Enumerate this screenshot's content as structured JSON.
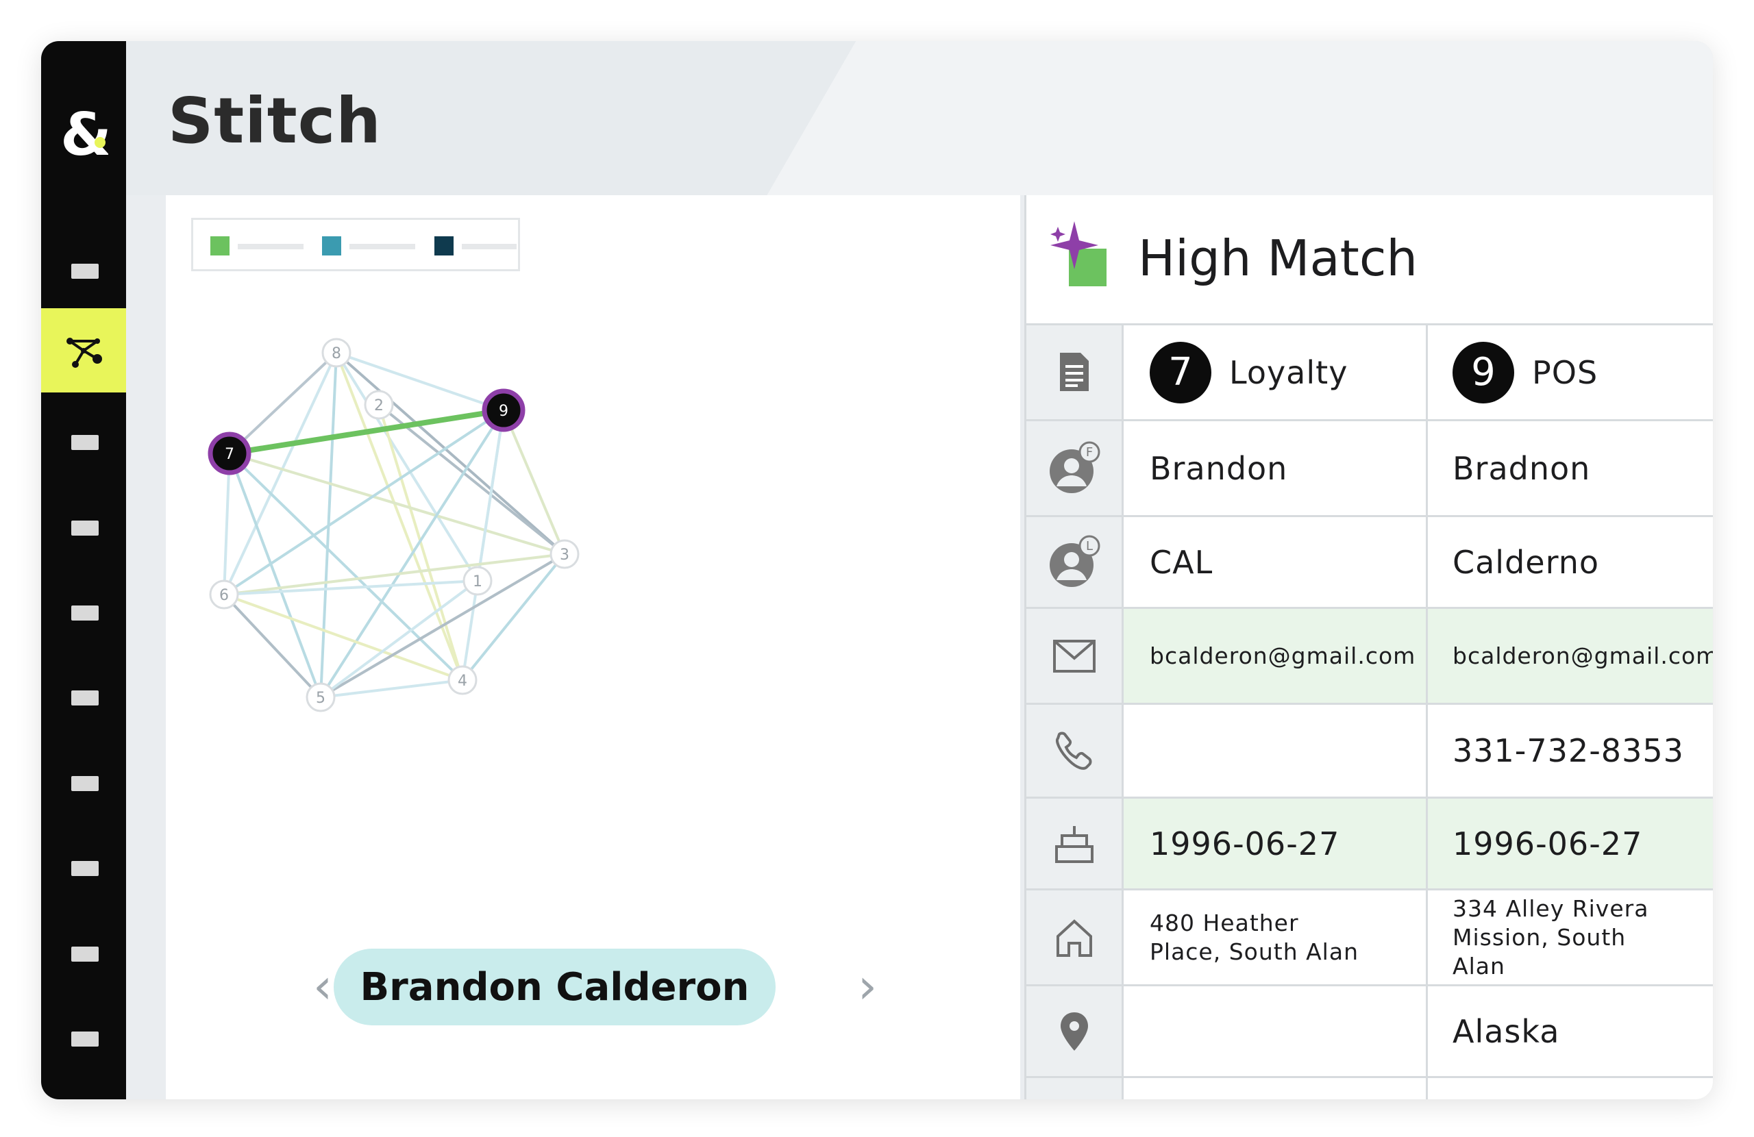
{
  "app": {
    "title": "Stitch",
    "logo_icon": "ampersand-logo-icon"
  },
  "sidebar": {
    "active_icon": "network-graph-icon",
    "items": [
      "item-1",
      "item-2",
      "item-3",
      "item-4",
      "item-5",
      "item-6",
      "item-7",
      "item-8",
      "item-9",
      "item-10"
    ]
  },
  "colors": {
    "accent_yellow": "#e8f55a",
    "legend_green": "#6cc25f",
    "legend_teal": "#3b9bb0",
    "legend_navy": "#0f3a4e",
    "match_edge": "#6cc25f",
    "selected_node_ring": "#8e3fa8",
    "pill_bg": "#c9ecec",
    "row_highlight": "#e9f5e9"
  },
  "graph": {
    "nodes": [
      {
        "id": "1"
      },
      {
        "id": "2"
      },
      {
        "id": "3"
      },
      {
        "id": "4"
      },
      {
        "id": "5"
      },
      {
        "id": "6"
      },
      {
        "id": "7",
        "selected": true
      },
      {
        "id": "8"
      },
      {
        "id": "9",
        "selected": true
      }
    ],
    "highlighted_edge": [
      "7",
      "9"
    ]
  },
  "person": {
    "name": "Brandon Calderon",
    "prev_icon": "chevron-left-icon",
    "next_icon": "chevron-right-icon"
  },
  "match": {
    "title": "High Match",
    "icon": "sparkle-match-icon",
    "sources": [
      {
        "number": "7",
        "label": "Loyalty"
      },
      {
        "number": "9",
        "label": "POS"
      }
    ],
    "rows": [
      {
        "icon": "first-name-icon",
        "a": "Brandon",
        "b": "Bradnon",
        "highlight": false
      },
      {
        "icon": "last-name-icon",
        "a": "CAL",
        "b": "Calderno",
        "highlight": false
      },
      {
        "icon": "email-icon",
        "a": "bcalderon@gmail.com",
        "b": "bcalderon@gmail.com",
        "highlight": true
      },
      {
        "icon": "phone-icon",
        "a": "",
        "b": "331-732-8353",
        "highlight": false
      },
      {
        "icon": "birthday-cake-icon",
        "a": "1996-06-27",
        "b": "1996-06-27",
        "highlight": true
      },
      {
        "icon": "home-icon",
        "a": "480 Heather Place, South Alan",
        "b": "334 Alley Rivera Mission, South Alan",
        "highlight": false
      },
      {
        "icon": "location-pin-icon",
        "a": "",
        "b": "Alaska",
        "highlight": false
      }
    ]
  }
}
